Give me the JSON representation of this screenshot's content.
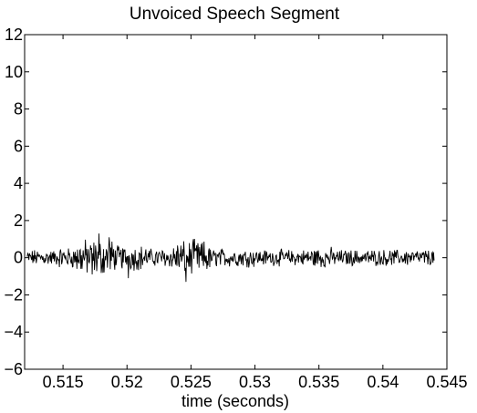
{
  "chart_data": {
    "type": "line",
    "title": "Unvoiced Speech Segment",
    "xlabel": "time (seconds)",
    "ylabel": "",
    "xlim": [
      0.512,
      0.545
    ],
    "ylim": [
      -6,
      12
    ],
    "x_ticks": [
      0.515,
      0.52,
      0.525,
      0.53,
      0.535,
      0.54,
      0.545
    ],
    "x_tick_labels": [
      "0.515",
      "0.52",
      "0.525",
      "0.53",
      "0.535",
      "0.54",
      "0.545"
    ],
    "y_ticks": [
      -6,
      -4,
      -2,
      0,
      2,
      4,
      6,
      8,
      10,
      12
    ],
    "y_tick_labels": [
      "−6",
      "−4",
      "−2",
      "0",
      "2",
      "4",
      "6",
      "8",
      "10",
      "12"
    ],
    "grid": false,
    "line_color": "#000000",
    "signal": {
      "x_start": 0.5122,
      "x_end": 0.544,
      "envelope_segments": [
        {
          "x0": 0.5122,
          "x1": 0.5145,
          "amp": 0.35
        },
        {
          "x0": 0.5145,
          "x1": 0.516,
          "amp": 0.45
        },
        {
          "x0": 0.516,
          "x1": 0.519,
          "amp": 0.8
        },
        {
          "x0": 0.519,
          "x1": 0.5215,
          "amp": 0.55
        },
        {
          "x0": 0.5215,
          "x1": 0.5235,
          "amp": 0.4
        },
        {
          "x0": 0.5235,
          "x1": 0.5265,
          "amp": 0.75
        },
        {
          "x0": 0.5265,
          "x1": 0.53,
          "amp": 0.4
        },
        {
          "x0": 0.53,
          "x1": 0.534,
          "amp": 0.35
        },
        {
          "x0": 0.534,
          "x1": 0.536,
          "amp": 0.45
        },
        {
          "x0": 0.536,
          "x1": 0.544,
          "amp": 0.35
        }
      ],
      "peaks": [
        {
          "x": 0.5178,
          "y": 1.3
        },
        {
          "x": 0.5186,
          "y": 1.1
        },
        {
          "x": 0.5201,
          "y": -1.1
        },
        {
          "x": 0.5246,
          "y": -1.3
        },
        {
          "x": 0.5252,
          "y": 1.0
        },
        {
          "x": 0.5173,
          "y": -0.9
        }
      ]
    }
  }
}
